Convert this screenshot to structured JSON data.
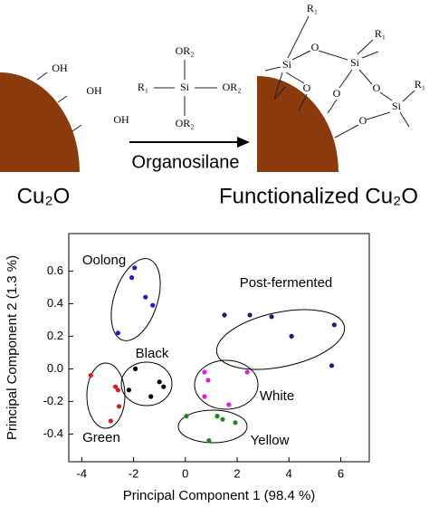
{
  "scheme": {
    "hydroxyls": [
      "OH",
      "OH",
      "OH"
    ],
    "silane": {
      "center": "Si",
      "r": "R₁",
      "groups": [
        "OR₂",
        "OR₂",
        "OR₂"
      ]
    },
    "arrow_label": "Organosilane",
    "left_label": "Cu₂O",
    "right_label": "Functionalized Cu₂O",
    "product_silicons": [
      "Si",
      "Si",
      "Si"
    ],
    "product_oxygens": [
      "O",
      "O",
      "O",
      "O",
      "O"
    ],
    "product_groups": [
      "R₁",
      "R₁",
      "R₁"
    ]
  },
  "chart_data": {
    "type": "scatter",
    "xlabel": "Principal Component 1 (98.4 %)",
    "ylabel": "Principal Component 2 (1.3 %)",
    "xlim": [
      -4.5,
      7.1
    ],
    "ylim": [
      -0.57,
      0.83
    ],
    "xticks": [
      -4,
      -2,
      0,
      2,
      4,
      6
    ],
    "yticks": [
      {
        "value": -0.4,
        "label": "-0.4"
      },
      {
        "value": -0.2,
        "label": "-0.2"
      },
      {
        "value": 0,
        "label": "0.0"
      },
      {
        "value": 0.2,
        "label": "0.2"
      },
      {
        "value": 0.4,
        "label": "0.4"
      },
      {
        "value": 0.6,
        "label": "0.6"
      }
    ],
    "series": [
      {
        "name": "Oolong",
        "color": "#1c1cdc",
        "x": [
          -1.96,
          -2.07,
          -1.54,
          -1.26,
          -2.6
        ],
        "values": [
          0.62,
          0.56,
          0.44,
          0.39,
          0.22
        ]
      },
      {
        "name": "Post-fermented",
        "color": "#1c1c88",
        "x": [
          1.51,
          2.49,
          3.33,
          4.1,
          5.75,
          5.65
        ],
        "values": [
          0.33,
          0.33,
          0.32,
          0.2,
          0.27,
          0.02
        ]
      },
      {
        "name": "Black",
        "color": "#000000",
        "x": [
          -1.93,
          -2.18,
          -1.0,
          -0.84,
          -1.33
        ],
        "values": [
          0.0,
          -0.13,
          -0.08,
          -0.11,
          -0.17
        ]
      },
      {
        "name": "Green",
        "color": "#e01c1c",
        "x": [
          -3.65,
          -2.7,
          -2.6,
          -2.56,
          -2.88
        ],
        "values": [
          -0.04,
          -0.11,
          -0.13,
          -0.23,
          -0.32
        ]
      },
      {
        "name": "White",
        "color": "#e01ee0",
        "x": [
          0.74,
          0.88,
          2.39,
          0.74,
          1.68
        ],
        "values": [
          -0.02,
          -0.07,
          -0.02,
          -0.17,
          -0.22
        ]
      },
      {
        "name": "Yellow",
        "color": "#1a8a1a",
        "x": [
          0.04,
          1.23,
          1.44,
          1.93,
          0.91
        ],
        "values": [
          -0.29,
          -0.29,
          -0.31,
          -0.33,
          -0.44
        ]
      }
    ]
  }
}
